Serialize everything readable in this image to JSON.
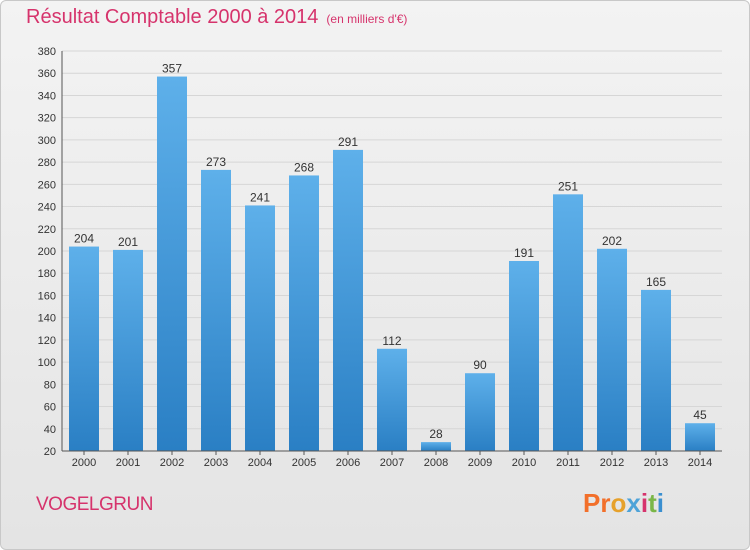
{
  "header": {
    "title": "Résultat Comptable 2000 à 2014",
    "subtitle": "(en milliers d'€)"
  },
  "footer": {
    "city": "VOGELGRUN",
    "logo": "Proxiti"
  },
  "colors": {
    "title": "#d6336c",
    "bar_top": "#5eb0ea",
    "bar_bottom": "#2a7fc4",
    "logo": [
      "#f26f2a",
      "#f26f2a",
      "#e6a12b",
      "#4ea3d8",
      "#d6336c",
      "#7ab648",
      "#3a8fd0"
    ]
  },
  "chart_data": {
    "type": "bar",
    "title": "Résultat Comptable 2000 à 2014",
    "subtitle": "(en milliers d'€)",
    "xlabel": "",
    "ylabel": "",
    "categories": [
      "2000",
      "2001",
      "2002",
      "2003",
      "2004",
      "2005",
      "2006",
      "2007",
      "2008",
      "2009",
      "2010",
      "2011",
      "2012",
      "2013",
      "2014"
    ],
    "values": [
      204,
      201,
      357,
      273,
      241,
      268,
      291,
      112,
      28,
      90,
      191,
      251,
      202,
      165,
      45
    ],
    "ylim": [
      20,
      380
    ],
    "yticks": [
      20,
      40,
      60,
      80,
      100,
      120,
      140,
      160,
      180,
      200,
      220,
      240,
      260,
      280,
      300,
      320,
      340,
      360,
      380
    ],
    "grid": true,
    "legend": "none"
  }
}
